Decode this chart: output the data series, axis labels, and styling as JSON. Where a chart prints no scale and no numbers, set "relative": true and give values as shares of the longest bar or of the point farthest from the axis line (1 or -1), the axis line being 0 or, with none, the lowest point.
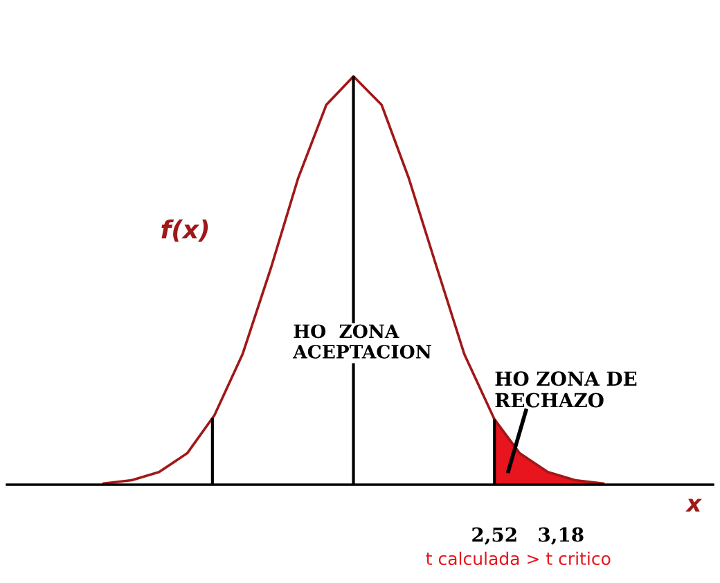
{
  "chart_data": {
    "type": "line",
    "relative": true,
    "xlabel": "x",
    "ylabel": "f(x)",
    "x": [
      -1.36,
      -1.08,
      -0.81,
      -0.53,
      -0.26,
      0.02,
      0.3,
      0.57,
      0.85,
      1.12,
      1.4,
      1.67,
      1.95,
      2.22,
      2.52,
      2.77,
      3.05,
      3.32,
      3.6
    ],
    "series": [
      {
        "color": "#a01818",
        "values": [
          0.003,
          0.011,
          0.031,
          0.077,
          0.17,
          0.32,
          0.53,
          0.75,
          0.93,
          1,
          0.93,
          0.75,
          0.53,
          0.32,
          0.16,
          0.077,
          0.031,
          0.011,
          0.003
        ]
      },
      {
        "type": "area",
        "color": "#e8141e",
        "x": [
          2.52,
          2.77,
          3.05,
          3.32,
          3.6
        ],
        "values": [
          0.16,
          0.077,
          0.031,
          0.011,
          0.003
        ]
      }
    ],
    "xlim": [
      -2.32,
      4.69
    ],
    "xticks": [
      {
        "value": 2.52,
        "label": "2,52"
      },
      {
        "value": 3.18,
        "label": "3,18"
      }
    ],
    "ref_lines": [
      {
        "axis": "x",
        "value": 1.12,
        "color": "#000000"
      },
      {
        "axis": "x",
        "value": -0.28,
        "color": "#000000"
      },
      {
        "axis": "x",
        "value": 2.52,
        "color": "#000000"
      }
    ],
    "annotations": [
      "HO  ZONA\nACEPTACION",
      "HO ZONA DE\nRECHAZO",
      "t calculada > t critico"
    ],
    "grid": false,
    "legend": false,
    "marker": "none",
    "line_style": "solid"
  }
}
